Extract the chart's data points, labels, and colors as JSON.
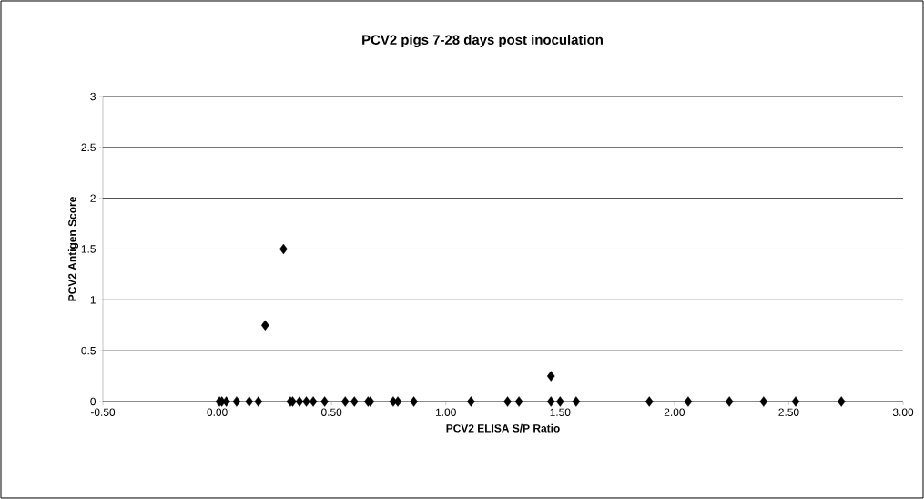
{
  "chart_data": {
    "type": "scatter",
    "title": "PCV2  pigs 7-28 days post inoculation",
    "xlabel": "PCV2 ELISA S/P Ratio",
    "ylabel": "PCV2 Antigen Score",
    "series": [
      {
        "color": "#000000",
        "x": [
          0.01,
          0.02,
          0.04,
          0.085,
          0.14,
          0.18,
          0.32,
          0.33,
          0.36,
          0.39,
          0.42,
          0.47,
          0.56,
          0.6,
          0.66,
          0.67,
          0.77,
          0.79,
          0.86,
          1.11,
          1.27,
          1.32,
          1.46,
          1.5,
          1.57,
          1.89,
          2.06,
          2.24,
          2.39,
          2.53,
          2.73,
          0.21,
          0.29,
          1.46
        ],
        "values": [
          0,
          0,
          0,
          0,
          0,
          0,
          0,
          0,
          0,
          0,
          0,
          0,
          0,
          0,
          0,
          0,
          0,
          0,
          0,
          0,
          0,
          0,
          0,
          0,
          0,
          0,
          0,
          0,
          0,
          0,
          0,
          0.75,
          1.5,
          0.25
        ]
      }
    ],
    "marker": "diamond",
    "grid": "y",
    "xlim": [
      -0.5,
      3.0
    ],
    "ylim": [
      0,
      3
    ],
    "xticks": [
      {
        "value": -0.5,
        "label": "-0.50"
      },
      {
        "value": 0,
        "label": "0.00"
      },
      {
        "value": 0.5,
        "label": "0.50"
      },
      {
        "value": 1,
        "label": "1.00"
      },
      {
        "value": 1.5,
        "label": "1.50"
      },
      {
        "value": 2,
        "label": "2.00"
      },
      {
        "value": 2.5,
        "label": "2.50"
      },
      {
        "value": 3,
        "label": "3.00"
      }
    ],
    "yticks": [
      0,
      0.5,
      1,
      1.5,
      2,
      2.5,
      3
    ]
  }
}
